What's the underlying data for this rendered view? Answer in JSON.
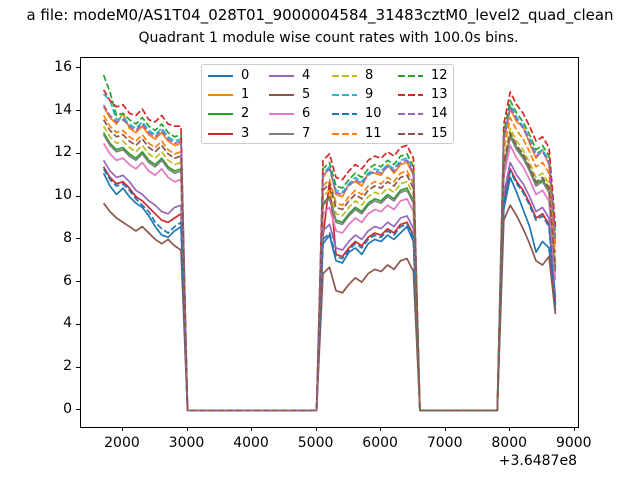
{
  "figure": {
    "suptitle": "a file: modeM0/AS1T04_028T01_9000004584_31483cztM0_level2_quad_clean",
    "x_offset_label": "+3.6487e8"
  },
  "chart_data": {
    "type": "line",
    "title": "Quadrant 1 module wise count rates with 100.0s bins.",
    "xlabel": "",
    "ylabel": "",
    "x_axis_offset": "+3.6487e8",
    "xlim": [
      1350,
      9050
    ],
    "ylim": [
      -0.78,
      16.49
    ],
    "x_ticks": [
      2000,
      3000,
      4000,
      5000,
      6000,
      7000,
      8000,
      9000
    ],
    "y_ticks": [
      0,
      2,
      4,
      6,
      8,
      10,
      12,
      14,
      16
    ],
    "grid": false,
    "legend_position": "upper center",
    "legend_ncol": 4,
    "x": [
      1700,
      1800,
      1900,
      2000,
      2100,
      2200,
      2300,
      2400,
      2500,
      2600,
      2700,
      2800,
      2900,
      3000,
      3500,
      4000,
      4500,
      5000,
      5100,
      5200,
      5300,
      5400,
      5500,
      5600,
      5700,
      5800,
      5900,
      6000,
      6100,
      6200,
      6300,
      6400,
      6500,
      6600,
      7000,
      7400,
      7800,
      7900,
      8000,
      8100,
      8200,
      8300,
      8400,
      8500,
      8600,
      8700
    ],
    "series": [
      {
        "name": "0",
        "color": "#1f77b4",
        "dashed": false,
        "values": [
          11.1,
          10.5,
          10.1,
          10.4,
          10.0,
          9.7,
          9.5,
          9.1,
          8.6,
          8.2,
          8.1,
          8.4,
          8.6,
          0,
          0,
          0,
          0,
          0,
          7.8,
          8.2,
          7.0,
          6.9,
          7.4,
          7.6,
          7.3,
          7.8,
          8.0,
          7.9,
          8.2,
          8.0,
          8.3,
          8.6,
          7.9,
          0,
          0,
          0,
          0,
          9.4,
          10.9,
          10.2,
          9.4,
          8.6,
          7.4,
          7.9,
          7.6,
          4.7
        ]
      },
      {
        "name": "1",
        "color": "#ff7f0e",
        "dashed": false,
        "values": [
          14.2,
          13.7,
          13.4,
          13.9,
          13.2,
          13.0,
          13.3,
          12.9,
          12.7,
          13.0,
          12.6,
          12.4,
          12.5,
          0,
          0,
          0,
          0,
          0,
          10.9,
          11.4,
          10.1,
          10.0,
          10.6,
          10.7,
          10.5,
          11.1,
          11.1,
          11.0,
          11.5,
          11.1,
          11.5,
          11.6,
          11.0,
          0,
          0,
          0,
          0,
          12.6,
          14.1,
          13.5,
          13.3,
          12.5,
          11.8,
          12.2,
          11.5,
          7.8
        ]
      },
      {
        "name": "2",
        "color": "#2ca02c",
        "dashed": false,
        "values": [
          13.0,
          12.5,
          12.2,
          12.3,
          12.0,
          11.8,
          12.1,
          11.7,
          11.5,
          11.8,
          11.4,
          11.2,
          11.3,
          0,
          0,
          0,
          0,
          0,
          9.7,
          10.0,
          8.9,
          8.8,
          9.2,
          9.5,
          9.3,
          9.7,
          9.9,
          9.8,
          10.1,
          9.9,
          10.3,
          10.4,
          9.8,
          0,
          0,
          0,
          0,
          11.4,
          12.9,
          12.3,
          11.9,
          11.3,
          10.6,
          10.8,
          10.3,
          6.6
        ]
      },
      {
        "name": "3",
        "color": "#d62728",
        "dashed": false,
        "values": [
          11.4,
          10.9,
          10.6,
          10.7,
          10.4,
          10.0,
          9.8,
          9.5,
          9.2,
          8.9,
          8.8,
          9.0,
          9.2,
          0,
          0,
          0,
          0,
          0,
          8.1,
          10.7,
          7.3,
          7.2,
          7.6,
          7.9,
          7.7,
          8.1,
          8.3,
          8.2,
          8.5,
          8.3,
          8.7,
          8.8,
          8.2,
          0,
          0,
          0,
          0,
          9.8,
          11.3,
          10.7,
          10.3,
          9.7,
          9.0,
          9.2,
          8.7,
          5.0
        ]
      },
      {
        "name": "4",
        "color": "#9467bd",
        "dashed": false,
        "values": [
          11.7,
          11.2,
          10.9,
          11.0,
          10.7,
          10.3,
          10.1,
          9.8,
          9.6,
          9.3,
          9.2,
          9.5,
          9.6,
          0,
          0,
          0,
          0,
          0,
          8.4,
          8.7,
          7.6,
          7.5,
          7.9,
          8.2,
          8.0,
          8.4,
          8.6,
          8.5,
          8.8,
          8.6,
          9.0,
          9.1,
          8.5,
          0,
          0,
          0,
          0,
          10.1,
          11.6,
          11.0,
          10.6,
          10.0,
          9.3,
          9.5,
          9.0,
          5.3
        ]
      },
      {
        "name": "5",
        "color": "#8c564b",
        "dashed": false,
        "values": [
          9.7,
          9.3,
          9.0,
          8.8,
          8.6,
          8.4,
          8.6,
          8.3,
          8.0,
          7.8,
          8.0,
          7.7,
          7.5,
          0,
          0,
          0,
          0,
          0,
          6.4,
          6.7,
          5.6,
          5.5,
          5.9,
          6.2,
          6.0,
          6.4,
          6.6,
          6.5,
          6.8,
          6.6,
          7.0,
          7.1,
          6.5,
          0,
          0,
          0,
          0,
          8.9,
          9.6,
          9.1,
          8.5,
          7.8,
          7.0,
          6.8,
          7.2,
          4.5
        ]
      },
      {
        "name": "6",
        "color": "#e377c2",
        "dashed": false,
        "values": [
          12.5,
          12.0,
          11.7,
          11.8,
          11.5,
          11.3,
          11.6,
          11.2,
          11.0,
          11.3,
          10.9,
          10.7,
          10.8,
          0,
          0,
          0,
          0,
          0,
          9.2,
          9.5,
          8.4,
          8.3,
          8.7,
          9.0,
          8.8,
          9.2,
          9.4,
          9.3,
          9.6,
          9.4,
          9.8,
          9.9,
          9.3,
          0,
          0,
          0,
          0,
          10.9,
          12.4,
          11.8,
          11.4,
          10.8,
          10.1,
          10.3,
          9.8,
          6.1
        ]
      },
      {
        "name": "7",
        "color": "#7f7f7f",
        "dashed": false,
        "values": [
          12.9,
          12.4,
          12.1,
          12.2,
          11.9,
          11.7,
          12.0,
          11.6,
          11.4,
          11.7,
          11.3,
          11.1,
          11.2,
          0,
          0,
          0,
          0,
          0,
          9.6,
          9.9,
          8.8,
          8.7,
          9.1,
          9.4,
          9.2,
          9.6,
          9.8,
          9.7,
          10.0,
          9.8,
          10.2,
          10.3,
          9.7,
          0,
          0,
          0,
          0,
          11.3,
          12.8,
          12.2,
          11.8,
          11.2,
          10.5,
          10.7,
          10.2,
          6.5
        ]
      },
      {
        "name": "8",
        "color": "#bcbd22",
        "dashed": true,
        "values": [
          13.3,
          12.8,
          12.5,
          12.6,
          12.3,
          12.1,
          12.4,
          12.0,
          11.8,
          12.1,
          11.7,
          11.5,
          11.6,
          0,
          0,
          0,
          0,
          0,
          10.0,
          10.3,
          9.2,
          9.1,
          9.5,
          9.8,
          9.6,
          10.0,
          10.2,
          10.1,
          10.4,
          10.2,
          10.6,
          10.7,
          10.1,
          0,
          0,
          0,
          0,
          11.7,
          13.2,
          12.6,
          12.2,
          11.6,
          10.9,
          11.1,
          10.6,
          6.9
        ]
      },
      {
        "name": "9",
        "color": "#17becf",
        "dashed": true,
        "values": [
          14.8,
          14.5,
          13.6,
          13.7,
          13.4,
          13.2,
          13.5,
          13.1,
          12.9,
          13.2,
          12.8,
          12.6,
          12.7,
          0,
          0,
          0,
          0,
          0,
          11.1,
          11.4,
          10.3,
          10.2,
          10.6,
          10.9,
          10.7,
          11.1,
          11.3,
          11.2,
          11.5,
          11.3,
          11.7,
          11.8,
          11.2,
          0,
          0,
          0,
          0,
          12.8,
          14.3,
          13.7,
          13.3,
          12.7,
          12.0,
          12.2,
          11.7,
          8.0
        ]
      },
      {
        "name": "10",
        "color": "#1f77b4",
        "dashed": true,
        "values": [
          11.3,
          10.8,
          10.5,
          10.6,
          10.3,
          9.9,
          9.6,
          9.3,
          8.8,
          8.5,
          8.3,
          8.6,
          8.8,
          0,
          0,
          0,
          0,
          0,
          8.0,
          8.3,
          7.2,
          7.1,
          7.5,
          7.8,
          7.6,
          8.0,
          8.2,
          8.1,
          8.4,
          8.2,
          8.6,
          8.7,
          8.1,
          0,
          0,
          0,
          0,
          9.7,
          11.2,
          10.6,
          10.2,
          9.6,
          8.9,
          9.1,
          8.6,
          4.9
        ]
      },
      {
        "name": "11",
        "color": "#ff7f0e",
        "dashed": true,
        "values": [
          13.8,
          13.3,
          13.0,
          13.1,
          12.8,
          12.6,
          12.9,
          12.5,
          12.3,
          12.6,
          12.2,
          12.0,
          12.1,
          0,
          0,
          0,
          0,
          0,
          10.5,
          10.8,
          9.7,
          9.6,
          10.0,
          10.3,
          10.1,
          10.5,
          10.7,
          10.6,
          10.9,
          10.7,
          11.1,
          11.2,
          10.6,
          0,
          0,
          0,
          0,
          12.2,
          13.7,
          13.1,
          12.7,
          12.1,
          11.4,
          11.6,
          11.1,
          7.4
        ]
      },
      {
        "name": "12",
        "color": "#2ca02c",
        "dashed": true,
        "values": [
          15.7,
          14.9,
          13.8,
          13.9,
          13.6,
          13.4,
          13.7,
          13.3,
          13.1,
          13.4,
          13.0,
          12.8,
          12.9,
          0,
          0,
          0,
          0,
          0,
          11.3,
          11.6,
          10.5,
          10.4,
          10.8,
          11.1,
          10.9,
          11.3,
          11.5,
          11.4,
          11.7,
          11.5,
          11.9,
          12.0,
          11.4,
          0,
          0,
          0,
          0,
          13.0,
          14.5,
          13.9,
          13.5,
          12.9,
          12.2,
          12.4,
          11.9,
          8.2
        ]
      },
      {
        "name": "13",
        "color": "#d62728",
        "dashed": true,
        "values": [
          15.0,
          14.5,
          14.2,
          14.3,
          13.9,
          13.8,
          14.1,
          13.6,
          13.5,
          13.8,
          13.4,
          13.3,
          13.3,
          0,
          0,
          0,
          0,
          0,
          11.7,
          12.0,
          10.9,
          10.8,
          11.2,
          11.5,
          11.3,
          11.7,
          11.9,
          11.8,
          12.1,
          11.9,
          12.3,
          12.4,
          11.8,
          0,
          0,
          0,
          0,
          13.4,
          14.9,
          14.3,
          13.9,
          13.3,
          12.6,
          12.8,
          12.3,
          8.6
        ]
      },
      {
        "name": "14",
        "color": "#9467bd",
        "dashed": true,
        "values": [
          14.3,
          13.8,
          13.5,
          13.6,
          13.3,
          13.1,
          13.4,
          13.0,
          12.8,
          13.1,
          12.7,
          12.5,
          12.6,
          0,
          0,
          0,
          0,
          0,
          11.0,
          11.3,
          10.2,
          10.1,
          10.5,
          10.8,
          10.6,
          11.0,
          11.2,
          11.1,
          11.4,
          11.2,
          11.6,
          11.7,
          11.1,
          0,
          0,
          0,
          0,
          12.7,
          14.2,
          13.6,
          13.2,
          12.6,
          11.9,
          12.1,
          11.6,
          7.9
        ]
      },
      {
        "name": "15",
        "color": "#8c564b",
        "dashed": true,
        "values": [
          13.6,
          13.1,
          12.8,
          12.9,
          12.6,
          12.4,
          12.7,
          12.3,
          12.1,
          12.4,
          12.0,
          11.8,
          11.9,
          0,
          0,
          0,
          0,
          0,
          10.3,
          10.6,
          9.5,
          9.4,
          9.8,
          10.1,
          9.9,
          10.3,
          10.5,
          10.4,
          10.7,
          10.5,
          10.9,
          11.0,
          10.4,
          0,
          0,
          0,
          0,
          11.5,
          13.0,
          12.4,
          12.0,
          11.4,
          10.7,
          10.9,
          10.4,
          6.7
        ]
      }
    ]
  }
}
